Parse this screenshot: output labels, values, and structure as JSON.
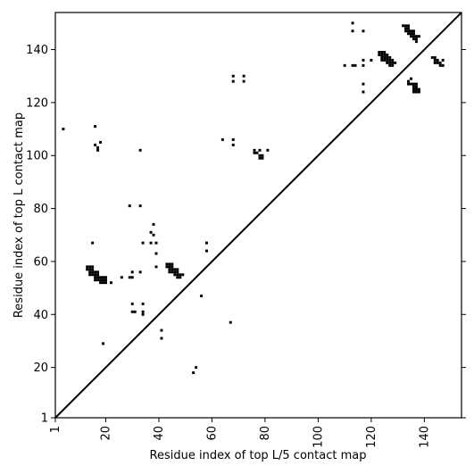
{
  "chart_data": {
    "type": "scatter",
    "xlabel": "Residue index of top L/5 contact map",
    "ylabel": "Residue index of top L contact map",
    "xlim": [
      1,
      154
    ],
    "ylim": [
      1,
      154
    ],
    "xticks": [
      1,
      20,
      40,
      60,
      80,
      100,
      120,
      140
    ],
    "yticks": [
      1,
      20,
      40,
      60,
      80,
      100,
      120,
      140
    ],
    "diagonal": true,
    "marker": "square",
    "marker_color": "#000000",
    "series": [
      {
        "values": [
          [
            4,
            110
          ],
          [
            16,
            111
          ],
          [
            16,
            104
          ],
          [
            17,
            103
          ],
          [
            18,
            105
          ],
          [
            17,
            102
          ],
          [
            33,
            102
          ],
          [
            15,
            67
          ],
          [
            13,
            58
          ],
          [
            14,
            58
          ],
          [
            15,
            58
          ],
          [
            13,
            57
          ],
          [
            14,
            57
          ],
          [
            15,
            57
          ],
          [
            14,
            56
          ],
          [
            15,
            56
          ],
          [
            16,
            56
          ],
          [
            17,
            56
          ],
          [
            14,
            55
          ],
          [
            15,
            55
          ],
          [
            16,
            55
          ],
          [
            17,
            55
          ],
          [
            16,
            54
          ],
          [
            17,
            54
          ],
          [
            18,
            54
          ],
          [
            19,
            54
          ],
          [
            20,
            54
          ],
          [
            16,
            53
          ],
          [
            17,
            53
          ],
          [
            18,
            53
          ],
          [
            19,
            53
          ],
          [
            20,
            53
          ],
          [
            18,
            52
          ],
          [
            19,
            52
          ],
          [
            20,
            52
          ],
          [
            22,
            52
          ],
          [
            19,
            29
          ],
          [
            29,
            81
          ],
          [
            33,
            81
          ],
          [
            38,
            74
          ],
          [
            37,
            71
          ],
          [
            38,
            70
          ],
          [
            37,
            67
          ],
          [
            39,
            67
          ],
          [
            34,
            67
          ],
          [
            39,
            63
          ],
          [
            39,
            58
          ],
          [
            30,
            56
          ],
          [
            33,
            56
          ],
          [
            26,
            54
          ],
          [
            29,
            54
          ],
          [
            30,
            54
          ],
          [
            30,
            44
          ],
          [
            34,
            44
          ],
          [
            30,
            41
          ],
          [
            31,
            41
          ],
          [
            34,
            41
          ],
          [
            34,
            40
          ],
          [
            41,
            34
          ],
          [
            41,
            31
          ],
          [
            43,
            59
          ],
          [
            44,
            59
          ],
          [
            45,
            59
          ],
          [
            43,
            58
          ],
          [
            44,
            58
          ],
          [
            45,
            58
          ],
          [
            44,
            57
          ],
          [
            45,
            57
          ],
          [
            46,
            57
          ],
          [
            47,
            57
          ],
          [
            44,
            56
          ],
          [
            45,
            56
          ],
          [
            46,
            56
          ],
          [
            47,
            56
          ],
          [
            46,
            55
          ],
          [
            47,
            55
          ],
          [
            48,
            55
          ],
          [
            49,
            55
          ],
          [
            47,
            54
          ],
          [
            48,
            54
          ],
          [
            53,
            18
          ],
          [
            54,
            20
          ],
          [
            56,
            47
          ],
          [
            58,
            67
          ],
          [
            58,
            64
          ],
          [
            64,
            106
          ],
          [
            68,
            106
          ],
          [
            68,
            104
          ],
          [
            67,
            37
          ],
          [
            68,
            130
          ],
          [
            72,
            130
          ],
          [
            68,
            128
          ],
          [
            72,
            128
          ],
          [
            76,
            102
          ],
          [
            78,
            102
          ],
          [
            81,
            102
          ],
          [
            76,
            101
          ],
          [
            77,
            101
          ],
          [
            78,
            100
          ],
          [
            79,
            100
          ],
          [
            78,
            99
          ],
          [
            79,
            99
          ],
          [
            113,
            150
          ],
          [
            113,
            147
          ],
          [
            117,
            147
          ],
          [
            110,
            134
          ],
          [
            113,
            134
          ],
          [
            114,
            134
          ],
          [
            117,
            134
          ],
          [
            117,
            136
          ],
          [
            120,
            136
          ],
          [
            117,
            127
          ],
          [
            117,
            124
          ],
          [
            123,
            139
          ],
          [
            124,
            139
          ],
          [
            125,
            139
          ],
          [
            123,
            138
          ],
          [
            124,
            138
          ],
          [
            125,
            138
          ],
          [
            126,
            138
          ],
          [
            124,
            137
          ],
          [
            125,
            137
          ],
          [
            126,
            137
          ],
          [
            127,
            137
          ],
          [
            124,
            136
          ],
          [
            125,
            136
          ],
          [
            126,
            136
          ],
          [
            127,
            136
          ],
          [
            128,
            136
          ],
          [
            126,
            135
          ],
          [
            127,
            135
          ],
          [
            128,
            135
          ],
          [
            129,
            135
          ],
          [
            127,
            134
          ],
          [
            128,
            134
          ],
          [
            132,
            149
          ],
          [
            133,
            149
          ],
          [
            134,
            149
          ],
          [
            133,
            148
          ],
          [
            134,
            148
          ],
          [
            133,
            147
          ],
          [
            134,
            147
          ],
          [
            135,
            147
          ],
          [
            136,
            147
          ],
          [
            134,
            146
          ],
          [
            135,
            146
          ],
          [
            136,
            146
          ],
          [
            135,
            145
          ],
          [
            136,
            145
          ],
          [
            137,
            145
          ],
          [
            138,
            145
          ],
          [
            136,
            144
          ],
          [
            137,
            144
          ],
          [
            137,
            143
          ],
          [
            134,
            128
          ],
          [
            135,
            129
          ],
          [
            134,
            127
          ],
          [
            135,
            127
          ],
          [
            136,
            127
          ],
          [
            137,
            127
          ],
          [
            136,
            126
          ],
          [
            137,
            126
          ],
          [
            136,
            125
          ],
          [
            137,
            125
          ],
          [
            138,
            125
          ],
          [
            136,
            124
          ],
          [
            137,
            124
          ],
          [
            138,
            124
          ],
          [
            143,
            137
          ],
          [
            144,
            137
          ],
          [
            144,
            136
          ],
          [
            145,
            136
          ],
          [
            147,
            136
          ],
          [
            144,
            135
          ],
          [
            145,
            135
          ],
          [
            146,
            135
          ],
          [
            146,
            134
          ],
          [
            147,
            134
          ]
        ]
      }
    ]
  }
}
